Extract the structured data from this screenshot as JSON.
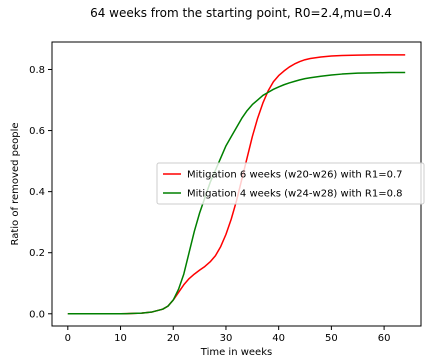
{
  "chart_data": {
    "type": "line",
    "title": "64 weeks from the starting point, R0=2.4,mu=0.4",
    "xlabel": "Time in weeks",
    "ylabel": "Ratio of removed people",
    "xlim": [
      -3,
      67
    ],
    "ylim": [
      -0.04,
      0.89
    ],
    "xticks": [
      0,
      10,
      20,
      30,
      40,
      50,
      60
    ],
    "yticks": [
      0.0,
      0.2,
      0.4,
      0.6,
      0.8
    ],
    "ytick_labels": [
      "0.0",
      "0.2",
      "0.4",
      "0.6",
      "0.8"
    ],
    "grid": false,
    "legend_position": "center-right",
    "series": [
      {
        "name": "Mitigation 6 weeks (w20-w26) with R1=0.7",
        "color": "#ff0000",
        "x": [
          0,
          10,
          14,
          16,
          18,
          19,
          20,
          21,
          22,
          23,
          24,
          25,
          26,
          27,
          28,
          29,
          30,
          31,
          32,
          33,
          34,
          35,
          36,
          37,
          38,
          39,
          40,
          41,
          42,
          43,
          44,
          45,
          46,
          48,
          50,
          52,
          55,
          58,
          61,
          64
        ],
        "y": [
          0.0,
          0.0,
          0.002,
          0.006,
          0.015,
          0.025,
          0.045,
          0.07,
          0.095,
          0.115,
          0.13,
          0.143,
          0.155,
          0.17,
          0.19,
          0.22,
          0.26,
          0.31,
          0.37,
          0.44,
          0.51,
          0.58,
          0.64,
          0.69,
          0.73,
          0.76,
          0.78,
          0.795,
          0.808,
          0.818,
          0.826,
          0.832,
          0.836,
          0.841,
          0.844,
          0.846,
          0.847,
          0.848,
          0.848,
          0.848
        ]
      },
      {
        "name": "Mitigation 4 weeks (w24-w28) with R1=0.8",
        "color": "#008000",
        "x": [
          0,
          10,
          14,
          16,
          18,
          19,
          20,
          21,
          22,
          23,
          24,
          25,
          26,
          27,
          28,
          29,
          30,
          31,
          32,
          33,
          34,
          35,
          36,
          37,
          38,
          39,
          40,
          41,
          42,
          43,
          44,
          45,
          46,
          48,
          50,
          52,
          55,
          58,
          61,
          64
        ],
        "y": [
          0.0,
          0.0,
          0.002,
          0.006,
          0.015,
          0.025,
          0.045,
          0.08,
          0.13,
          0.2,
          0.27,
          0.33,
          0.38,
          0.43,
          0.47,
          0.51,
          0.55,
          0.58,
          0.61,
          0.64,
          0.665,
          0.685,
          0.7,
          0.715,
          0.725,
          0.735,
          0.743,
          0.75,
          0.756,
          0.761,
          0.766,
          0.77,
          0.773,
          0.778,
          0.782,
          0.785,
          0.788,
          0.789,
          0.79,
          0.79
        ]
      }
    ]
  }
}
